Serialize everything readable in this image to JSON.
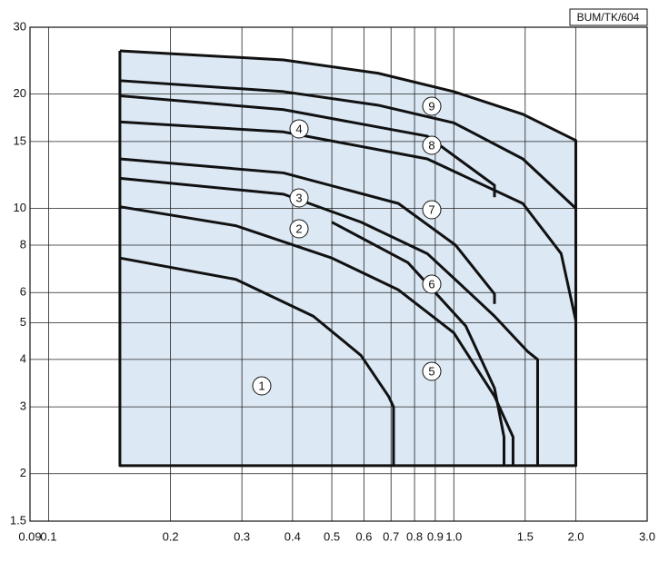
{
  "chart_data": {
    "type": "line",
    "annotation": "BUM/TK/604",
    "log_x": true,
    "log_y": true,
    "grid": true,
    "area_color": "#dce8f4",
    "xlim": [
      0.09,
      3.0
    ],
    "ylim": [
      1.5,
      30
    ],
    "xticks": [
      0.09,
      0.1,
      0.2,
      0.3,
      0.4,
      0.5,
      0.6,
      0.7,
      0.8,
      0.9,
      {
        "value": 1,
        "label": "1.0"
      },
      1.5,
      {
        "value": 2,
        "label": "2.0"
      },
      {
        "value": 3,
        "label": "3.0"
      }
    ],
    "yticks": [
      1.5,
      2,
      3,
      4,
      5,
      6,
      8,
      10,
      15,
      20,
      30
    ],
    "series": [
      {
        "name": "1",
        "color": "#111111",
        "x": [
          0.15,
          0.29,
          0.45,
          0.59,
          0.69,
          0.71,
          0.71
        ],
        "values": [
          7.4,
          6.5,
          5.2,
          4.1,
          3.2,
          3.0,
          2.1
        ]
      },
      {
        "name": "2",
        "color": "#111111",
        "x": [
          0.15,
          0.29,
          0.5,
          0.73,
          1.0,
          1.26,
          1.4,
          1.4
        ],
        "values": [
          10.1,
          9.0,
          7.4,
          6.1,
          4.7,
          3.2,
          2.5,
          2.1
        ]
      },
      {
        "name": "3",
        "color": "#111111",
        "x": [
          0.15,
          0.38,
          0.59,
          0.86,
          1.13,
          1.26,
          1.52,
          1.61,
          1.61
        ],
        "values": [
          12.0,
          10.9,
          9.2,
          7.6,
          5.8,
          5.2,
          4.2,
          4.0,
          2.1
        ]
      },
      {
        "name": "4",
        "color": "#111111",
        "x": [
          0.15,
          0.38,
          0.86,
          1.48,
          1.84,
          2.0,
          2.0
        ],
        "values": [
          16.9,
          15.9,
          13.5,
          10.3,
          7.6,
          5.06,
          2.1
        ]
      },
      {
        "name": "5",
        "color": "#111111",
        "x": [
          0.5,
          0.77,
          1.07,
          1.26,
          1.33,
          1.33
        ],
        "values": [
          9.2,
          7.2,
          4.9,
          3.36,
          2.5,
          2.1
        ]
      },
      {
        "name": "6",
        "color": "#111111",
        "x": [
          0.15,
          0.38,
          0.73,
          1.01,
          1.26,
          1.26
        ],
        "values": [
          13.5,
          12.4,
          10.3,
          8.0,
          5.95,
          5.6
        ]
      },
      {
        "name": "7",
        "color": "#111111",
        "x": [
          0.15,
          0.38,
          0.86,
          1.26,
          1.26
        ],
        "values": [
          19.8,
          18.2,
          15.5,
          11.5,
          10.7
        ]
      },
      {
        "name": "8",
        "color": "#111111",
        "x": [
          0.15,
          0.38,
          0.65,
          1.0,
          1.48,
          2.0
        ],
        "values": [
          21.7,
          20.3,
          18.7,
          16.8,
          13.5,
          10
        ]
      },
      {
        "name": "9",
        "color": "#111111",
        "x": [
          0.15,
          0.38,
          0.65,
          1.0,
          1.48,
          2.0,
          2.0,
          0.15,
          0.15
        ],
        "values": [
          26.0,
          24.6,
          22.7,
          20.3,
          17.7,
          15.1,
          2.1,
          2.1,
          26.0
        ]
      }
    ]
  }
}
